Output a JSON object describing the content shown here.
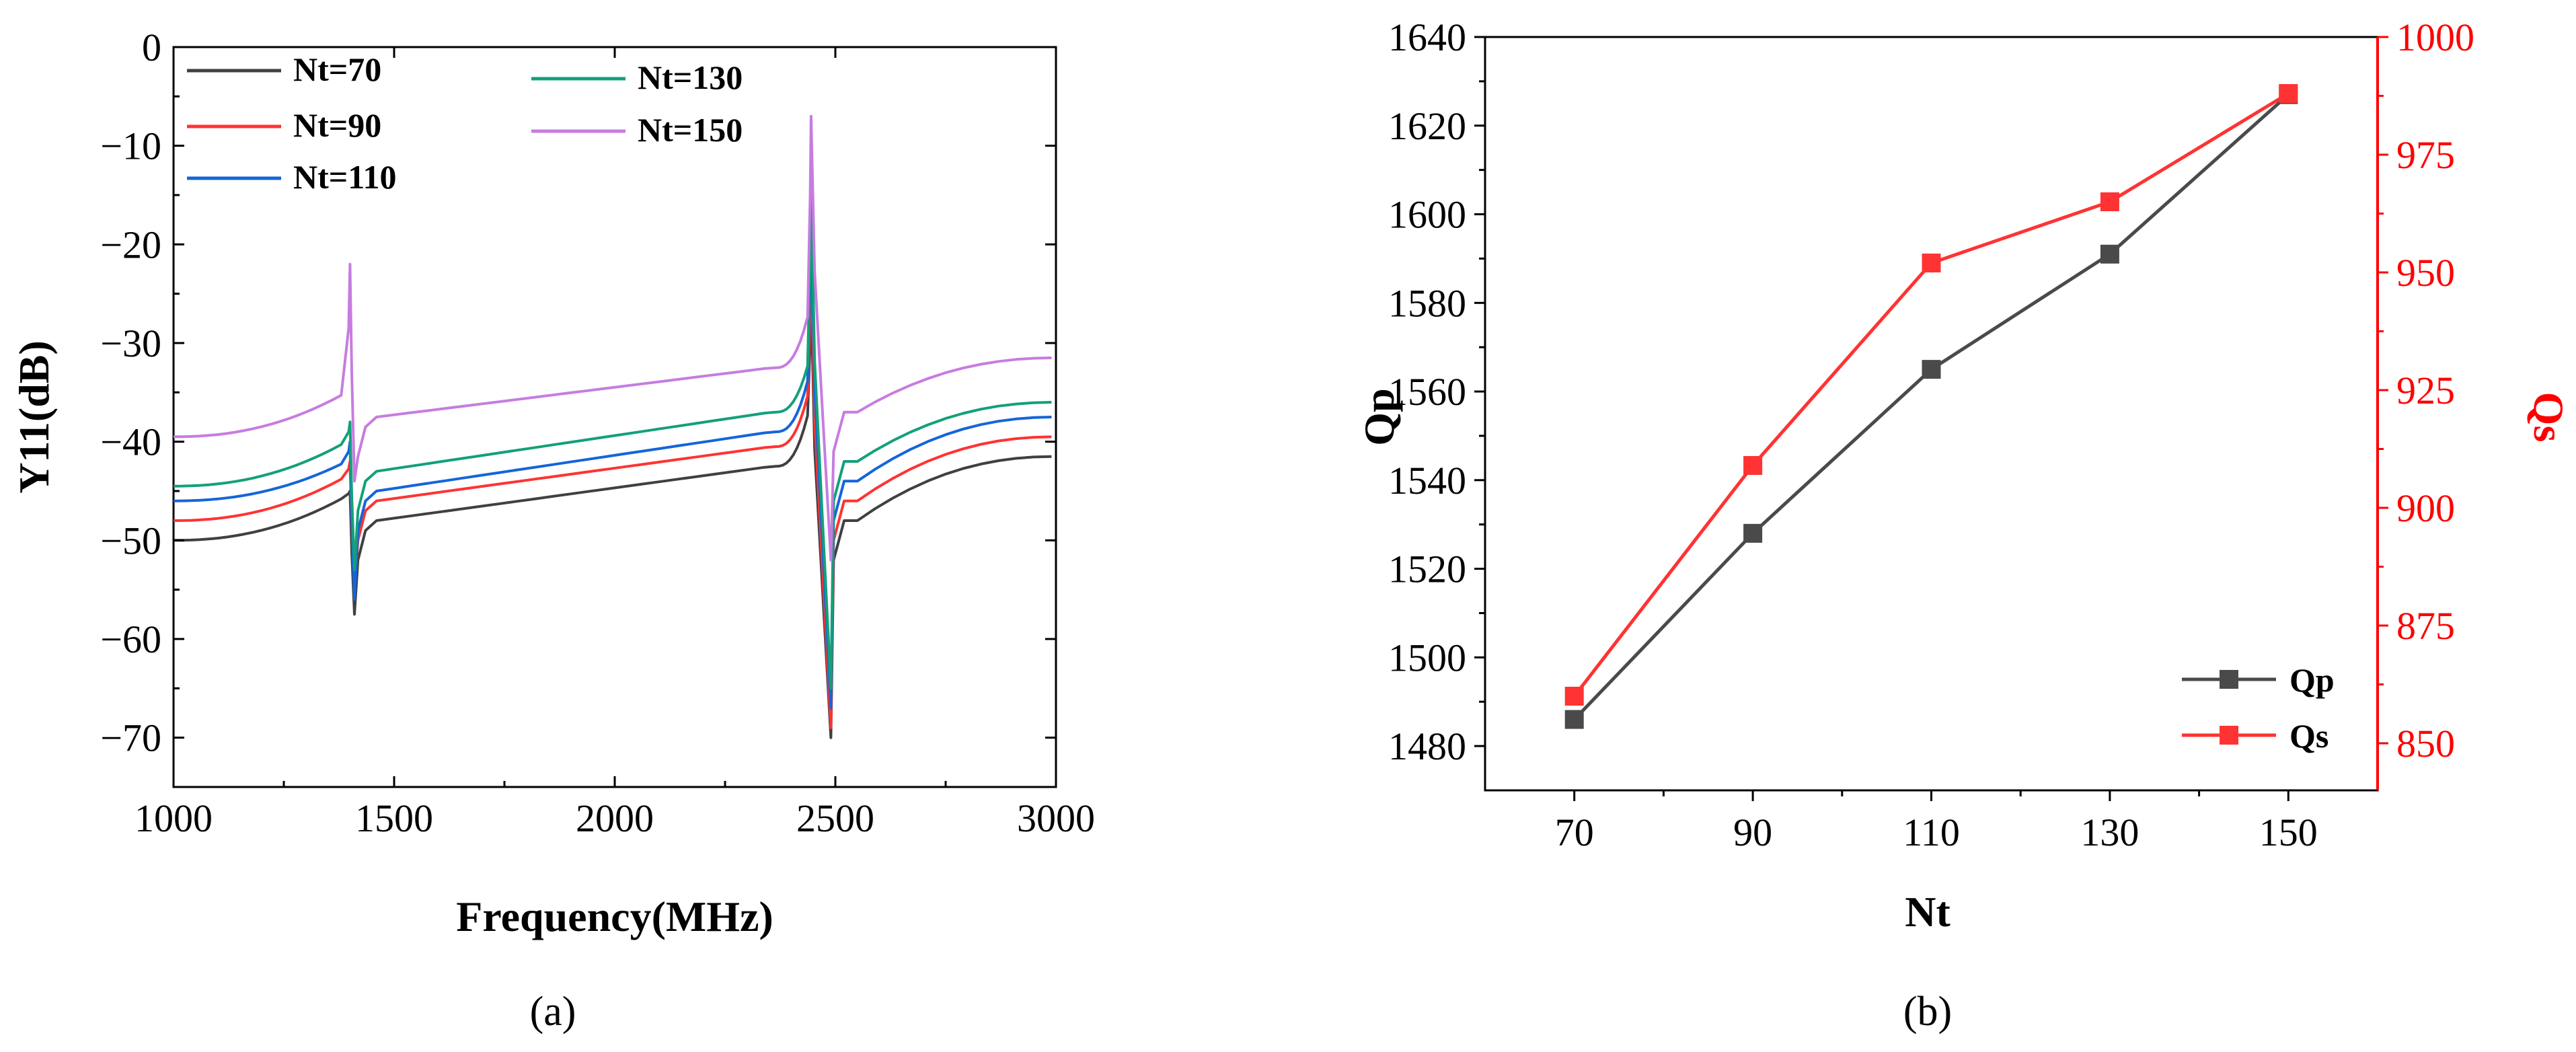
{
  "chart_data": [
    {
      "panel": "(a)",
      "type": "line",
      "xlabel": "Frequency(MHz)",
      "ylabel": "Y11(dB)",
      "xlim": [
        1000,
        3000
      ],
      "ylim": [
        -75,
        0
      ],
      "xticks": [
        1000,
        1500,
        2000,
        2500,
        3000
      ],
      "yticks": [
        0,
        -10,
        -20,
        -30,
        -40,
        -50,
        -60,
        -70
      ],
      "xtick_labels": [
        "1000",
        "1500",
        "2000",
        "2500",
        "3000"
      ],
      "ytick_labels": [
        "0",
        "−10",
        "−20",
        "−30",
        "−40",
        "−50",
        "−60",
        "−70"
      ],
      "legend_position": "top-left",
      "series": [
        {
          "name": "Nt=70",
          "color": "#404040",
          "start": -50,
          "pre1": -45.5,
          "res1_peak": -45,
          "res1_dip": -57.5,
          "mid_a": -48,
          "mid_b": -42.5,
          "pre2": -37,
          "res2_peak": -25,
          "res2_dip": -70,
          "post2": -48,
          "end": -41.5
        },
        {
          "name": "Nt=90",
          "color": "#ff3333",
          "start": -48,
          "pre1": -43.5,
          "res1_peak": -42,
          "res1_dip": -55,
          "mid_a": -46,
          "mid_b": -40.5,
          "pre2": -35,
          "res2_peak": -21,
          "res2_dip": -69,
          "post2": -46,
          "end": -39.5
        },
        {
          "name": "Nt=110",
          "color": "#1565d8",
          "start": -46,
          "pre1": -42,
          "res1_peak": -40,
          "res1_dip": -56,
          "mid_a": -45,
          "mid_b": -39,
          "pre2": -33.5,
          "res2_peak": -17,
          "res2_dip": -67,
          "post2": -44,
          "end": -37.5
        },
        {
          "name": "Nt=130",
          "color": "#13a07a",
          "start": -44.5,
          "pre1": -40,
          "res1_peak": -38,
          "res1_dip": -53,
          "mid_a": -43,
          "mid_b": -37,
          "pre2": -32,
          "res2_peak": -14,
          "res2_dip": -65,
          "post2": -42,
          "end": -36
        },
        {
          "name": "Nt=150",
          "color": "#c77ce0",
          "start": -39.5,
          "pre1": -35,
          "res1_peak": -22,
          "res1_dip": -44,
          "mid_a": -37.5,
          "mid_b": -32.5,
          "pre2": -27,
          "res2_peak": -7,
          "res2_dip": -52,
          "post2": -37,
          "end": -31.5
        }
      ],
      "resonance_1_mhz": 1400,
      "antiresonance_1_mhz": 1410,
      "resonance_2_mhz": 2445,
      "antiresonance_2_mhz": 2490
    },
    {
      "panel": "(b)",
      "type": "line",
      "xlabel": "Nt",
      "ylabel": "Qp",
      "y2label": "Qs",
      "categories": [
        70,
        90,
        110,
        130,
        150
      ],
      "xlim": [
        60,
        160
      ],
      "ylim": [
        1470,
        1640
      ],
      "y2lim": [
        840,
        1000
      ],
      "xtick_labels": [
        "70",
        "90",
        "110",
        "130",
        "150"
      ],
      "yticks": [
        1480,
        1500,
        1520,
        1540,
        1560,
        1580,
        1600,
        1620,
        1640
      ],
      "y2ticks": [
        850,
        875,
        900,
        925,
        950,
        975,
        1000
      ],
      "legend_position": "bottom-right",
      "series": [
        {
          "name": "Qp",
          "axis": "left",
          "color": "#4a4a4a",
          "values": [
            1486,
            1528,
            1565,
            1591,
            1627
          ]
        },
        {
          "name": "Qs",
          "axis": "right",
          "color": "#ff3333",
          "values": [
            860,
            909,
            952,
            965,
            988
          ]
        }
      ]
    }
  ],
  "captions": [
    "(a)",
    "(b)"
  ]
}
